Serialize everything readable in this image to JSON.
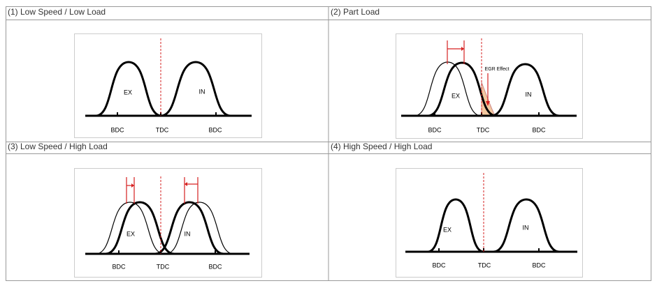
{
  "panels": [
    {
      "title": "(1) Low Speed / Low Load",
      "labels": {
        "ex": "EX",
        "in": "IN",
        "bdc_left": "BDC",
        "tdc": "TDC",
        "bdc_right": "BDC"
      }
    },
    {
      "title": "(2) Part Load",
      "labels": {
        "ex": "EX",
        "in": "IN",
        "bdc_left": "BDC",
        "tdc": "TDC",
        "bdc_right": "BDC"
      },
      "annotation": "EGR Effect"
    },
    {
      "title": "(3) Low Speed / High Load",
      "labels": {
        "ex": "EX",
        "in": "IN",
        "bdc_left": "BDC",
        "tdc": "TDC",
        "bdc_right": "BDC"
      }
    },
    {
      "title": "(4) High Speed / High Load",
      "labels": {
        "ex": "EX",
        "in": "IN",
        "bdc_left": "BDC",
        "tdc": "TDC",
        "bdc_right": "BDC"
      }
    }
  ]
}
